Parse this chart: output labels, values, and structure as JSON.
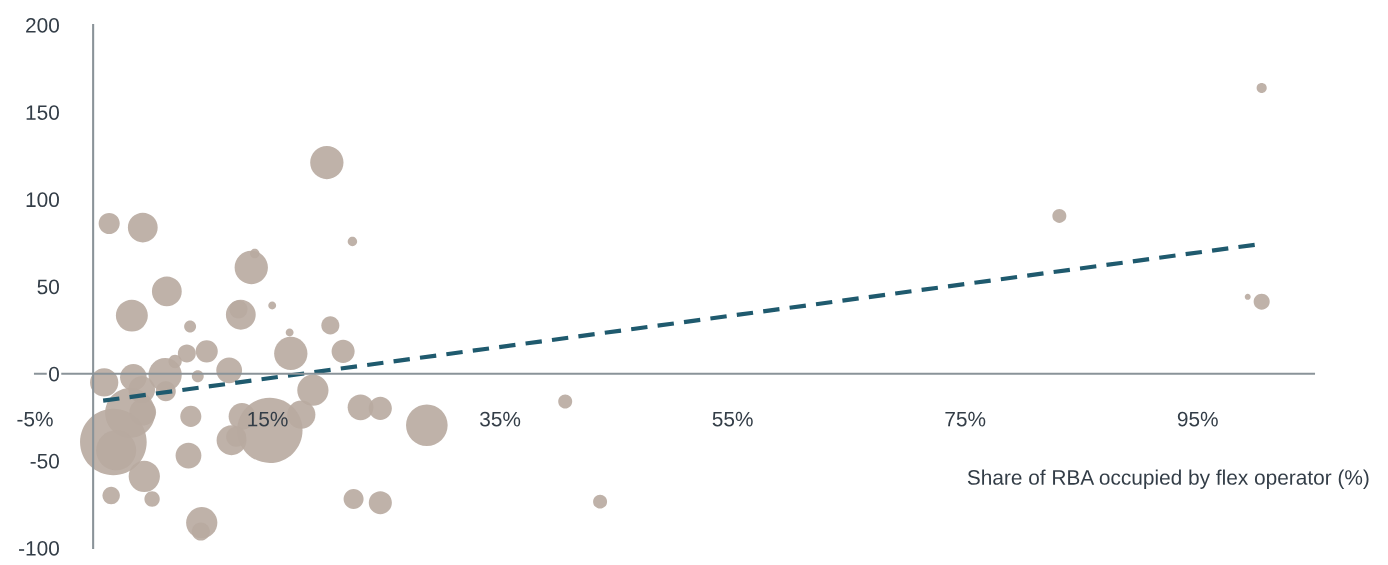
{
  "chart_data": {
    "type": "bubble",
    "xlabel": "Share of RBA occupied by flex operator (%)",
    "xlim": [
      -5,
      105
    ],
    "xticks": [
      {
        "value": -5,
        "label": "-5%"
      },
      {
        "value": 15,
        "label": "15%"
      },
      {
        "value": 35,
        "label": "35%"
      },
      {
        "value": 55,
        "label": "55%"
      },
      {
        "value": 75,
        "label": "75%"
      },
      {
        "value": 95,
        "label": "95%"
      }
    ],
    "ylim": [
      -100,
      200
    ],
    "yticks": [
      -100,
      -50,
      0,
      50,
      100,
      150,
      200
    ],
    "grid": false,
    "series": [
      {
        "color": "#b8aaa0",
        "x": [
          20.1,
          1.38,
          4.27,
          22.3,
          13.9,
          13.6,
          6.34,
          3.33,
          15.4,
          12.7,
          12.5,
          8.34,
          20.4,
          16.9,
          8.06,
          9.77,
          7.05,
          17.0,
          21.5,
          11.7,
          9.0,
          6.19,
          3.46,
          0.95,
          4.18,
          6.25,
          18.9,
          3.18,
          4.27,
          8.4,
          23.0,
          24.7,
          17.9,
          12.8,
          15.2,
          28.7,
          1.74,
          1.98,
          11.9,
          12.3,
          8.2,
          4.4,
          1.55,
          5.07,
          9.34,
          9.26,
          22.4,
          24.7,
          40.6,
          43.6,
          83.1,
          100.5,
          100.5,
          99.3
        ],
        "values": [
          121.1,
          86.1,
          83.8,
          75.8,
          68.9,
          60.9,
          47.2,
          33.3,
          39.1,
          33.8,
          36.9,
          27.1,
          27.7,
          23.6,
          11.6,
          12.8,
          7.0,
          11.6,
          12.8,
          1.9,
          -1.5,
          -0.6,
          -2.1,
          -5.0,
          -9.2,
          -10.1,
          -9.5,
          -22.5,
          -22.1,
          -24.5,
          -19.3,
          -19.9,
          -23.5,
          -24.5,
          -32.5,
          -29.6,
          -39.2,
          -44.0,
          -38.2,
          -36.2,
          -47.0,
          -58.9,
          -69.9,
          -71.9,
          -85.5,
          -90.6,
          -71.9,
          -74.0,
          -16.0,
          -73.4,
          90.5,
          163.9,
          41.3,
          44.1
        ],
        "sizes": [
          0.25,
          0.1,
          0.2,
          0.02,
          0.02,
          0.25,
          0.2,
          0.23,
          0.014,
          0.2,
          0.073,
          0.032,
          0.073,
          0.014,
          0.073,
          0.11,
          0.04,
          0.25,
          0.12,
          0.15,
          0.032,
          0.25,
          0.16,
          0.18,
          0.16,
          0.09,
          0.22,
          0.56,
          0.16,
          0.1,
          0.15,
          0.12,
          0.18,
          0.16,
          0.96,
          0.39,
          1,
          0.36,
          0.2,
          0.09,
          0.15,
          0.22,
          0.068,
          0.053,
          0.22,
          0.073,
          0.09,
          0.12,
          0.044,
          0.044,
          0.044,
          0.023,
          0.058,
          0.008
        ]
      },
      {
        "type": "line",
        "color": "#1f5a6e",
        "line_style": "dashed",
        "x": [
          0.86,
          99.9
        ],
        "values": [
          -15.5,
          73.9
        ]
      }
    ]
  }
}
